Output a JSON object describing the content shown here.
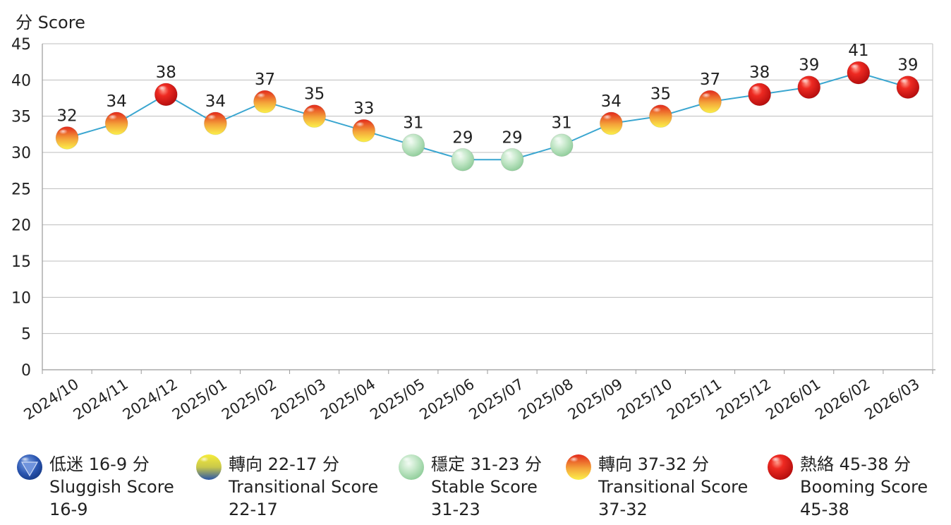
{
  "chart_data": {
    "type": "line",
    "ylabel": "分 Score",
    "ylim": [
      0,
      45
    ],
    "yticks": [
      0,
      5,
      10,
      15,
      20,
      25,
      30,
      35,
      40,
      45
    ],
    "grid": true,
    "categories": [
      "2024/10",
      "2024/11",
      "2024/12",
      "2025/01",
      "2025/02",
      "2025/03",
      "2025/04",
      "2025/05",
      "2025/06",
      "2025/07",
      "2025/08",
      "2025/09",
      "2025/10",
      "2025/11",
      "2025/12",
      "2026/01",
      "2026/02",
      "2026/03"
    ],
    "values": [
      32,
      34,
      38,
      34,
      37,
      35,
      33,
      31,
      29,
      29,
      31,
      34,
      35,
      37,
      38,
      39,
      41,
      39
    ],
    "marker_types": [
      "transitional_high",
      "transitional_high",
      "booming",
      "transitional_high",
      "transitional_high",
      "transitional_high",
      "transitional_high",
      "stable",
      "stable",
      "stable",
      "stable",
      "transitional_high",
      "transitional_high",
      "transitional_high",
      "booming",
      "booming",
      "booming",
      "booming"
    ],
    "line_color": "#3aa6d0",
    "legend_position": "bottom"
  },
  "legend": [
    {
      "key": "sluggish",
      "icon": "blue-triangle-sphere-icon",
      "line1": "低迷 16-9 分",
      "line2": "Sluggish Score",
      "line3": "16-9"
    },
    {
      "key": "transitional_low",
      "icon": "yellow-blue-sphere-icon",
      "line1": "轉向 22-17 分",
      "line2": "Transitional Score",
      "line3": "22-17"
    },
    {
      "key": "stable",
      "icon": "green-sphere-icon",
      "line1": "穩定 31-23 分",
      "line2": "Stable Score",
      "line3": "31-23"
    },
    {
      "key": "transitional_high",
      "icon": "red-yellow-sphere-icon",
      "line1": "轉向 37-32 分",
      "line2": "Transitional Score",
      "line3": "37-32"
    },
    {
      "key": "booming",
      "icon": "red-sphere-icon",
      "line1": "熱絡 45-38 分",
      "line2": "Booming Score",
      "line3": "45-38"
    }
  ],
  "colors": {
    "booming": "#e01b1b",
    "transitional_high_top": "#e8321e",
    "transitional_high_bottom": "#f6ea3c",
    "stable": "#a8d9b0",
    "transitional_low_top": "#f3e83a",
    "transitional_low_bottom": "#2c56a8",
    "sluggish": "#2a55b0",
    "grid": "#bdbdbd",
    "axis": "#9a9a9a"
  }
}
